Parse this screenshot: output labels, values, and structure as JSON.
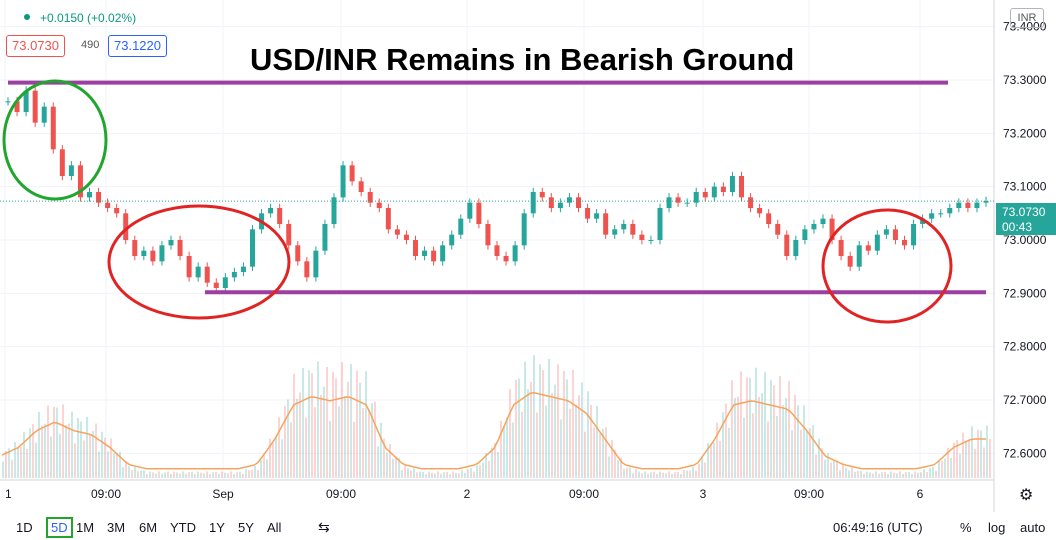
{
  "header": {
    "change": "+0.0150 (+0.02%)",
    "sell_price": "73.0730",
    "spread": "490",
    "buy_price": "73.1220",
    "symbol": "INR"
  },
  "title": "USD/INR Remains in Bearish Ground",
  "current": {
    "price": "73.0730",
    "countdown": "00:43",
    "color": "#26a69a"
  },
  "toolbar": {
    "timeframes": [
      "1D",
      "5D",
      "1M",
      "3M",
      "6M",
      "YTD",
      "1Y",
      "5Y",
      "All"
    ],
    "selected": "5D",
    "clock": "06:49:16 (UTC)",
    "percent": "%",
    "log": "log",
    "auto": "auto"
  },
  "chart_data": {
    "type": "line",
    "title": "USD/INR Remains in Bearish Ground",
    "y_range": [
      72.55,
      73.45
    ],
    "y_ticks": [
      72.6,
      72.7,
      72.8,
      72.9,
      73.0,
      73.1,
      73.2,
      73.3,
      73.4
    ],
    "y_tick_labels": [
      "72.6000",
      "72.7000",
      "72.8000",
      "72.9000",
      "73.0000",
      "73.1000",
      "73.2000",
      "73.3000",
      "73.4000"
    ],
    "x_ticks": [
      "1",
      "09:00",
      "Sep",
      "09:00",
      "2",
      "09:00",
      "3",
      "09:00",
      "6"
    ],
    "series": [
      {
        "values": [
          73.26,
          73.24,
          73.28,
          73.22,
          73.25,
          73.17,
          73.12,
          73.14,
          73.08,
          73.09,
          73.07,
          73.06,
          73.05,
          73.0,
          72.97,
          72.98,
          72.96,
          72.99,
          73.0,
          72.97,
          72.93,
          72.95,
          72.92,
          72.91,
          72.93,
          72.94,
          72.95,
          73.02,
          73.05,
          73.06,
          73.03,
          72.99,
          72.96,
          72.93,
          72.98,
          73.03,
          73.08,
          73.14,
          73.11,
          73.09,
          73.07,
          73.06,
          73.02,
          73.01,
          73.0,
          72.97,
          72.98,
          72.96,
          72.99,
          73.01,
          73.04,
          73.07,
          73.03,
          72.99,
          72.97,
          72.96,
          72.99,
          73.05,
          73.09,
          73.08,
          73.06,
          73.07,
          73.08,
          73.06,
          73.04,
          73.05,
          73.01,
          73.02,
          73.03,
          73.01,
          73.0,
          73.0,
          73.06,
          73.08,
          73.07,
          73.07,
          73.09,
          73.08,
          73.1,
          73.09,
          73.12,
          73.08,
          73.06,
          73.05,
          73.03,
          73.01,
          72.97,
          73.0,
          73.02,
          73.03,
          73.04,
          73.0,
          72.97,
          72.95,
          72.99,
          72.98,
          73.01,
          73.02,
          73.0,
          72.99,
          73.03,
          73.04,
          73.05,
          73.05,
          73.06,
          73.07,
          73.06,
          73.07,
          73.073
        ]
      }
    ],
    "volume_profile": [
      0.2,
      0.3,
      0.5,
      0.6,
      0.5,
      0.45,
      0.3,
      0.1,
      0.05,
      0.05,
      0.05,
      0.05,
      0.05,
      0.05,
      0.1,
      0.4,
      0.8,
      0.9,
      0.85,
      0.9,
      0.8,
      0.3,
      0.1,
      0.05,
      0.05,
      0.05,
      0.1,
      0.3,
      0.8,
      0.95,
      0.9,
      0.85,
      0.7,
      0.4,
      0.1,
      0.05,
      0.05,
      0.05,
      0.1,
      0.4,
      0.8,
      0.85,
      0.8,
      0.75,
      0.5,
      0.2,
      0.1,
      0.05,
      0.05,
      0.05,
      0.05,
      0.1,
      0.3,
      0.4,
      0.4
    ],
    "annotations": {
      "resistance_level": 73.295,
      "support_level": 72.902,
      "circle_colors": [
        "#21a52e",
        "#e02424",
        "#e02424"
      ]
    },
    "up_color": "#26a69a",
    "down_color": "#ef5350",
    "line_color": "#9c3fa0"
  }
}
